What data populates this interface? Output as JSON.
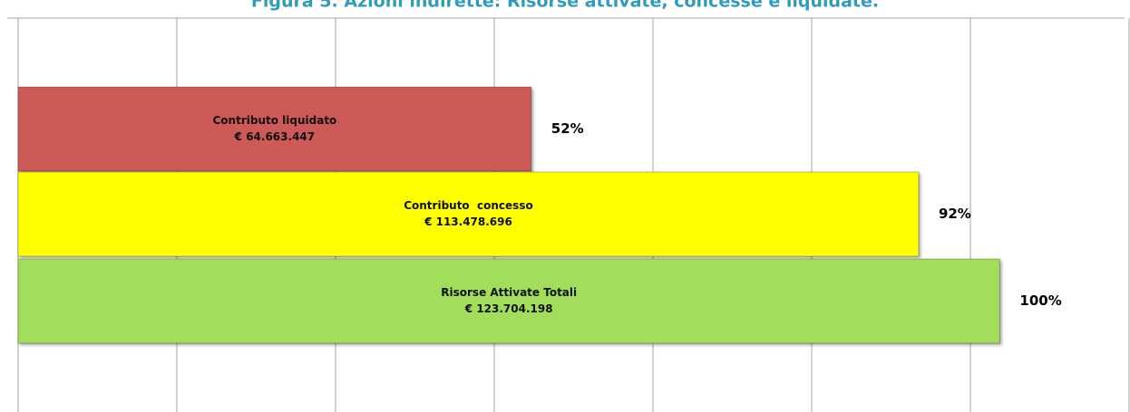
{
  "chart_data": {
    "type": "barh",
    "title": "Figura 5. Azioni indirette: Risorse attivate, concesse e liquidate.",
    "categories": [
      "Contributo liquidato",
      "Contributo  concesso",
      "Risorse Attivate Totali"
    ],
    "values": [
      64663447,
      113478696,
      123704198
    ],
    "value_labels": [
      "€ 64.663.447",
      "€ 113.478.696",
      "€ 123.704.198"
    ],
    "share_labels": [
      "52%",
      "92%",
      "100%"
    ],
    "colors": [
      "#cd5a57",
      "#ffff00",
      "#a2dd5c"
    ],
    "xlim": [
      0,
      140000000
    ],
    "xticks": [
      0,
      20000000,
      40000000,
      60000000,
      80000000,
      100000000,
      120000000,
      140000000
    ],
    "grid": true
  }
}
